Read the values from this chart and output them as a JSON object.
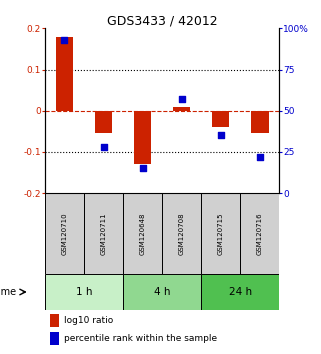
{
  "title": "GDS3433 / 42012",
  "samples": [
    "GSM120710",
    "GSM120711",
    "GSM120648",
    "GSM120708",
    "GSM120715",
    "GSM120716"
  ],
  "log10_ratio": [
    0.18,
    -0.055,
    -0.13,
    0.01,
    -0.04,
    -0.055
  ],
  "percentile_rank": [
    93,
    28,
    15,
    57,
    35,
    22
  ],
  "time_groups": [
    {
      "label": "1 h",
      "start": 0,
      "end": 2,
      "color": "#c8f0c8"
    },
    {
      "label": "4 h",
      "start": 2,
      "end": 4,
      "color": "#90d890"
    },
    {
      "label": "24 h",
      "start": 4,
      "end": 6,
      "color": "#50c050"
    }
  ],
  "ylim_left": [
    -0.2,
    0.2
  ],
  "ylim_right": [
    0,
    100
  ],
  "yticks_left": [
    -0.2,
    -0.1,
    0.0,
    0.1,
    0.2
  ],
  "ytick_labels_left": [
    "-0.2",
    "-0.1",
    "0",
    "0.1",
    "0.2"
  ],
  "yticks_right": [
    0,
    25,
    50,
    75,
    100
  ],
  "ytick_labels_right": [
    "0",
    "25",
    "50",
    "75",
    "100%"
  ],
  "bar_color_red": "#cc2200",
  "dot_color_blue": "#0000cc",
  "sample_box_color": "#d0d0d0",
  "zero_line_color": "#cc2200",
  "grid_color": "#000000",
  "title_color": "#000000",
  "left_tick_color": "#cc2200",
  "right_tick_color": "#0000cc"
}
